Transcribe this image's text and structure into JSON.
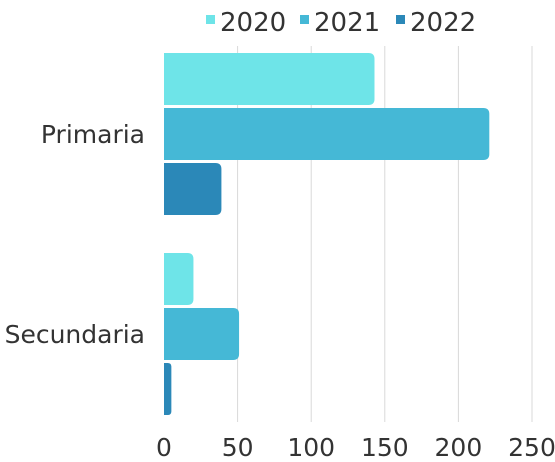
{
  "chart_data": {
    "type": "bar",
    "orientation": "horizontal",
    "categories": [
      "Primaria",
      "Secundaria"
    ],
    "series": [
      {
        "name": "2020",
        "color": "#6ee4e8",
        "values": [
          143,
          20
        ]
      },
      {
        "name": "2021",
        "color": "#45b8d6",
        "values": [
          221,
          51
        ]
      },
      {
        "name": "2022",
        "color": "#2b88b8",
        "values": [
          39,
          5
        ]
      }
    ],
    "xlim": [
      0,
      250
    ],
    "xticks": [
      0,
      50,
      100,
      150,
      200,
      250
    ],
    "grid": true,
    "legend_position": "top-center",
    "title": "",
    "xlabel": "",
    "ylabel": ""
  }
}
